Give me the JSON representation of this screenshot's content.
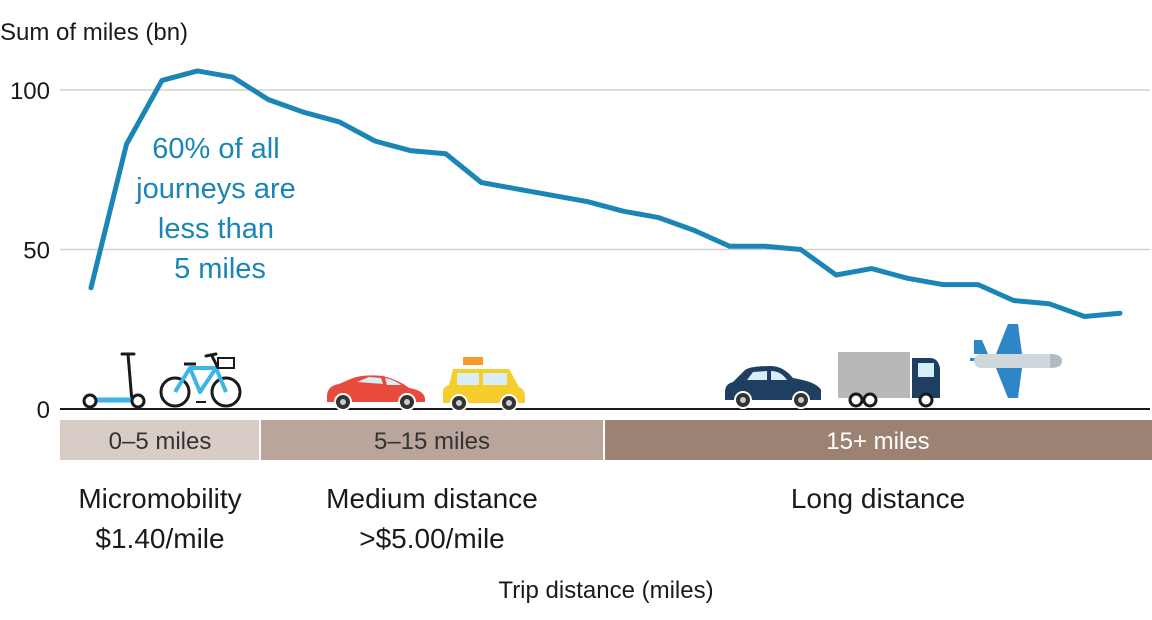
{
  "chart_data": {
    "type": "line",
    "ylabel": "Sum of miles (bn)",
    "xlabel": "Trip distance (miles)",
    "ylim": [
      0,
      100
    ],
    "yticks": [
      0,
      50,
      100
    ],
    "grid": true,
    "x": [
      1,
      2,
      3,
      4,
      5,
      6,
      7,
      8,
      9,
      10,
      11,
      12,
      13,
      14,
      15,
      16,
      17,
      18,
      19,
      20,
      21,
      22,
      23,
      24,
      25,
      26,
      27,
      28,
      29,
      30,
      31
    ],
    "values": [
      38,
      83,
      103,
      106,
      104,
      97,
      93,
      90,
      84,
      81,
      80,
      71,
      69,
      67,
      65,
      62,
      60,
      56,
      51,
      51,
      50,
      42,
      44,
      41,
      39,
      39,
      34,
      33,
      29,
      30,
      null
    ],
    "color": "#1a86b5",
    "annotation": [
      "60% of all",
      "journeys are",
      "less than",
      "5 miles"
    ],
    "bands": [
      {
        "label": "0–5 miles",
        "color": "#d8ccc6",
        "text_color": "#333333",
        "range": [
          0,
          5
        ]
      },
      {
        "label": "5–15 miles",
        "color": "#b9a59b",
        "text_color": "#333333",
        "range": [
          5,
          15
        ]
      },
      {
        "label": "15+ miles",
        "color": "#9c8273",
        "text_color": "#ffffff",
        "range": [
          15,
          31
        ]
      }
    ],
    "categories": [
      {
        "title": "Micromobility",
        "subtitle": "$1.40/mile"
      },
      {
        "title": "Medium distance",
        "subtitle": ">$5.00/mile"
      },
      {
        "title": "Long distance",
        "subtitle": ""
      }
    ],
    "icons": [
      "kick-scooter-icon",
      "bicycle-icon",
      "car-icon",
      "taxi-icon",
      "hatchback-car-icon",
      "truck-icon",
      "airplane-icon"
    ]
  }
}
